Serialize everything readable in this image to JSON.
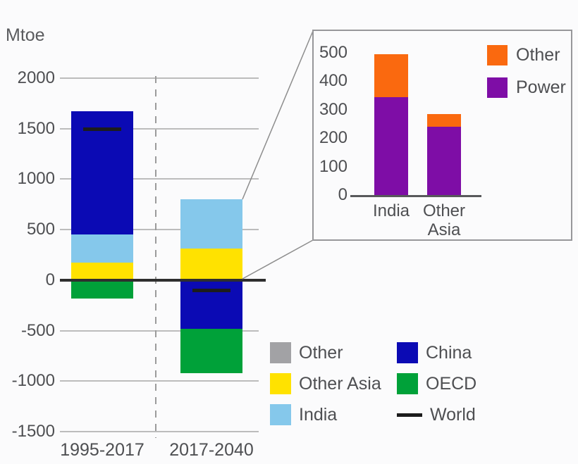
{
  "page": {
    "background": "#fbfbfc",
    "text_color": "#4e4f52"
  },
  "chart_data": [
    {
      "id": "main",
      "type": "bar",
      "stacked": true,
      "ylabel": "Mtoe",
      "ylim": [
        -1500,
        2000
      ],
      "yticks": [
        2000,
        1500,
        1000,
        500,
        0,
        -500,
        -1000,
        -1500
      ],
      "grid": true,
      "legend_position": "bottom-right",
      "categories": [
        "1995-2017",
        "2017-2040"
      ],
      "series_colors": {
        "China": "#0b0ab4",
        "India": "#85c8eb",
        "Other Asia": "#ffe200",
        "OECD": "#00a139",
        "Other": "#a2a2a5",
        "World": "#1c1c1c"
      },
      "bars": [
        {
          "category": "1995-2017",
          "segments": [
            {
              "series": "China",
              "from": 450,
              "to": 1670
            },
            {
              "series": "India",
              "from": 170,
              "to": 450
            },
            {
              "series": "Other Asia",
              "from": 0,
              "to": 170
            },
            {
              "series": "OECD",
              "from": -180,
              "to": 0
            }
          ],
          "world_marker": 1500
        },
        {
          "category": "2017-2040",
          "segments": [
            {
              "series": "India",
              "from": 310,
              "to": 800
            },
            {
              "series": "Other Asia",
              "from": 0,
              "to": 310
            },
            {
              "series": "China",
              "from": -480,
              "to": 0
            },
            {
              "series": "OECD",
              "from": -920,
              "to": -480
            }
          ],
          "world_marker": -100
        }
      ],
      "legend": [
        {
          "label": "Other",
          "swatch": "square",
          "color": "#a2a2a5"
        },
        {
          "label": "Other Asia",
          "swatch": "square",
          "color": "#ffe200"
        },
        {
          "label": "India",
          "swatch": "square",
          "color": "#85c8eb"
        },
        {
          "label": "China",
          "swatch": "square",
          "color": "#0b0ab4"
        },
        {
          "label": "OECD",
          "swatch": "square",
          "color": "#00a139"
        },
        {
          "label": "World",
          "swatch": "line",
          "color": "#1c1c1c"
        }
      ]
    },
    {
      "id": "inset",
      "type": "bar",
      "stacked": true,
      "ylim": [
        0,
        500
      ],
      "yticks": [
        0,
        100,
        200,
        300,
        400,
        500
      ],
      "grid": false,
      "legend_position": "top-right",
      "categories": [
        "India",
        "Other Asia"
      ],
      "series": [
        {
          "name": "Power",
          "color": "#7e0da6",
          "values": [
            345,
            240
          ]
        },
        {
          "name": "Other",
          "color": "#fa690f",
          "values": [
            150,
            45
          ]
        }
      ],
      "legend": [
        {
          "label": "Other",
          "color": "#fa690f"
        },
        {
          "label": "Power",
          "color": "#7e0da6"
        }
      ]
    }
  ]
}
